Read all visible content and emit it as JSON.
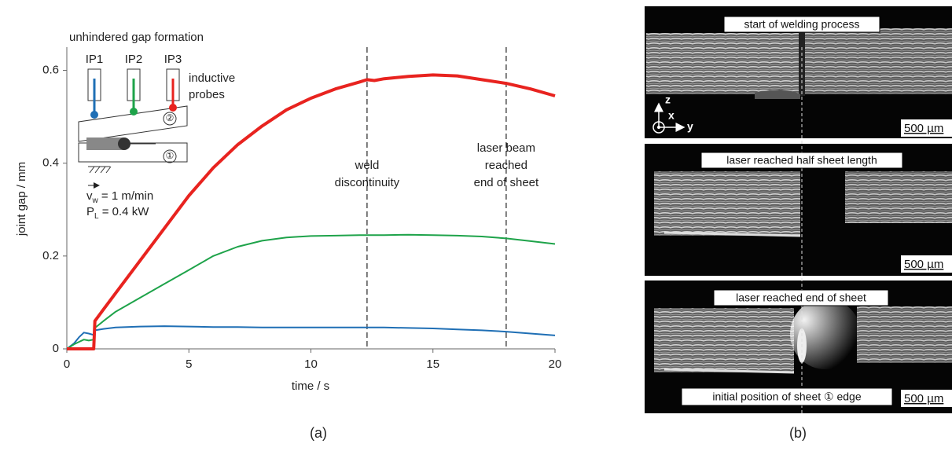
{
  "chart_data": {
    "type": "line",
    "title": "unhindered gap formation",
    "x_label": "time / s",
    "y_label": "joint gap / mm",
    "x": [
      0,
      0.3,
      0.5,
      0.7,
      0.9,
      1.1,
      1.15,
      1.5,
      2,
      3,
      4,
      5,
      6,
      7,
      8,
      9,
      10,
      11,
      12,
      12.3,
      12.6,
      13,
      14,
      15,
      16,
      17,
      18,
      19,
      20
    ],
    "series": [
      {
        "name": "IP1",
        "color": "#1f6fb5",
        "values": [
          0,
          0.012,
          0.025,
          0.035,
          0.033,
          0.03,
          0.04,
          0.043,
          0.046,
          0.048,
          0.049,
          0.048,
          0.047,
          0.047,
          0.046,
          0.046,
          0.046,
          0.046,
          0.046,
          0.046,
          0.046,
          0.046,
          0.045,
          0.044,
          0.042,
          0.04,
          0.037,
          0.033,
          0.029
        ]
      },
      {
        "name": "IP2",
        "color": "#1ea34a",
        "values": [
          0,
          0.01,
          0.015,
          0.02,
          0.018,
          0.02,
          0.045,
          0.06,
          0.08,
          0.11,
          0.14,
          0.17,
          0.2,
          0.22,
          0.233,
          0.24,
          0.243,
          0.244,
          0.245,
          0.245,
          0.245,
          0.245,
          0.246,
          0.245,
          0.244,
          0.242,
          0.238,
          0.232,
          0.226
        ]
      },
      {
        "name": "IP3",
        "color": "#e8231f",
        "values": [
          0,
          0,
          0,
          0,
          0,
          0,
          0.06,
          0.085,
          0.12,
          0.19,
          0.26,
          0.33,
          0.39,
          0.44,
          0.48,
          0.515,
          0.54,
          0.56,
          0.575,
          0.58,
          0.578,
          0.582,
          0.587,
          0.59,
          0.588,
          0.58,
          0.572,
          0.56,
          0.545
        ]
      }
    ],
    "xlim": [
      0,
      20
    ],
    "ylim": [
      0,
      0.65
    ],
    "xticks": [
      0,
      5,
      10,
      15,
      20
    ],
    "yticks": [
      0,
      0.2,
      0.4,
      0.6
    ],
    "annotations": [
      {
        "x": 12.3,
        "lines": [
          "weld",
          "discontinuity"
        ]
      },
      {
        "x": 18,
        "lines": [
          "laser beam",
          "reached",
          "end of sheet"
        ]
      }
    ],
    "inset": {
      "probe_label_lines": [
        "inductive",
        "probes"
      ],
      "sheets": [
        "②",
        "①"
      ],
      "speed": {
        "symbol": "v",
        "subscript": "w",
        "text": " = 1 m/min"
      },
      "power": {
        "symbol": "P",
        "subscript": "L",
        "text": " = 0.4 kW"
      }
    },
    "panel_label": "(a)"
  },
  "figure_b": {
    "panel_label": "(b)",
    "axes": {
      "z": "z",
      "x": "x",
      "y": "y"
    },
    "edge_note": "initial position of sheet ① edge",
    "frames": [
      {
        "caption": "start of welding process",
        "scale_bar": "500 µm"
      },
      {
        "caption": "laser reached half sheet length",
        "scale_bar": "500 µm"
      },
      {
        "caption": "laser reached end of sheet",
        "scale_bar": "500 µm"
      }
    ]
  }
}
